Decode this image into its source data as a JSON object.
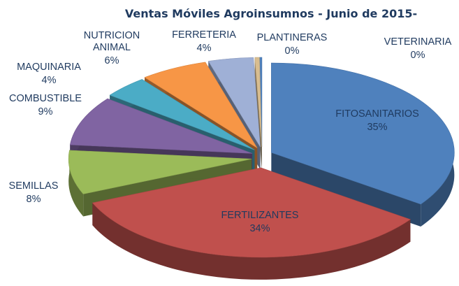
{
  "chart_data": {
    "type": "pie3d",
    "title": "Ventas Móviles Agroinsumnos - Junio de 2015-",
    "categories": [
      "FITOSANITARIOS",
      "FERTILIZANTES",
      "SEMILLAS",
      "COMBUSTIBLE",
      "MAQUINARIA",
      "NUTRICION ANIMAL",
      "FERRETERIA",
      "PLANTINERAS",
      "VETERINARIA"
    ],
    "values": [
      35,
      34,
      8,
      9,
      4,
      6,
      4,
      0.4,
      0.2
    ],
    "value_labels": [
      "35%",
      "34%",
      "8%",
      "9%",
      "4%",
      "6%",
      "4%",
      "0%",
      "0%"
    ],
    "colors": [
      "#4f81bd",
      "#c0504d",
      "#9bbb59",
      "#8064a2",
      "#4bacc6",
      "#f79646",
      "#9fb0d6",
      "#d8bd8f"
    ]
  }
}
